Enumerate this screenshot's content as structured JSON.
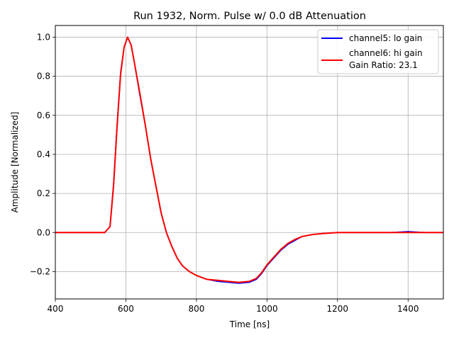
{
  "chart_data": {
    "type": "line",
    "title": "Run 1932, Norm. Pulse w/ 0.0 dB Attenuation",
    "xlabel": "Time [ns]",
    "ylabel": "Amplitude [Normalized]",
    "xlim": [
      400,
      1500
    ],
    "ylim": [
      -0.34,
      1.06
    ],
    "xticks": [
      400,
      600,
      800,
      1000,
      1200,
      1400
    ],
    "yticks": [
      -0.2,
      0.0,
      0.2,
      0.4,
      0.6,
      0.8,
      1.0
    ],
    "ytick_labels": [
      "−0.2",
      "0.0",
      "0.2",
      "0.4",
      "0.6",
      "0.8",
      "1.0"
    ],
    "grid": true,
    "legend_position": "top-right",
    "annotation": "Gain Ratio: 23.1",
    "x": [
      400,
      450,
      500,
      540,
      555,
      565,
      575,
      585,
      595,
      605,
      615,
      625,
      640,
      655,
      670,
      685,
      700,
      715,
      730,
      745,
      760,
      780,
      800,
      830,
      860,
      890,
      920,
      950,
      970,
      985,
      1000,
      1020,
      1040,
      1060,
      1080,
      1100,
      1130,
      1160,
      1200,
      1250,
      1300,
      1350,
      1400,
      1450,
      1500
    ],
    "series": [
      {
        "name": "channel5: lo gain",
        "color": "#0000ff",
        "values": [
          0.0,
          0.0,
          0.0,
          0.0,
          0.03,
          0.25,
          0.55,
          0.82,
          0.95,
          1.0,
          0.96,
          0.86,
          0.7,
          0.55,
          0.38,
          0.24,
          0.1,
          0.0,
          -0.07,
          -0.13,
          -0.17,
          -0.2,
          -0.22,
          -0.24,
          -0.25,
          -0.255,
          -0.26,
          -0.255,
          -0.24,
          -0.21,
          -0.17,
          -0.13,
          -0.09,
          -0.06,
          -0.04,
          -0.02,
          -0.01,
          -0.005,
          0.0,
          0.0,
          0.0,
          0.0,
          0.005,
          0.0,
          0.0
        ]
      },
      {
        "name": "channel6: hi gain",
        "color": "#ff0000",
        "values": [
          0.0,
          0.0,
          0.0,
          0.0,
          0.03,
          0.24,
          0.54,
          0.81,
          0.95,
          1.0,
          0.96,
          0.86,
          0.71,
          0.55,
          0.38,
          0.24,
          0.1,
          0.0,
          -0.07,
          -0.13,
          -0.17,
          -0.2,
          -0.22,
          -0.24,
          -0.245,
          -0.25,
          -0.255,
          -0.25,
          -0.235,
          -0.205,
          -0.165,
          -0.125,
          -0.085,
          -0.055,
          -0.035,
          -0.02,
          -0.01,
          -0.005,
          0.0,
          0.0,
          0.0,
          0.0,
          0.0,
          0.0,
          0.0
        ]
      }
    ]
  }
}
